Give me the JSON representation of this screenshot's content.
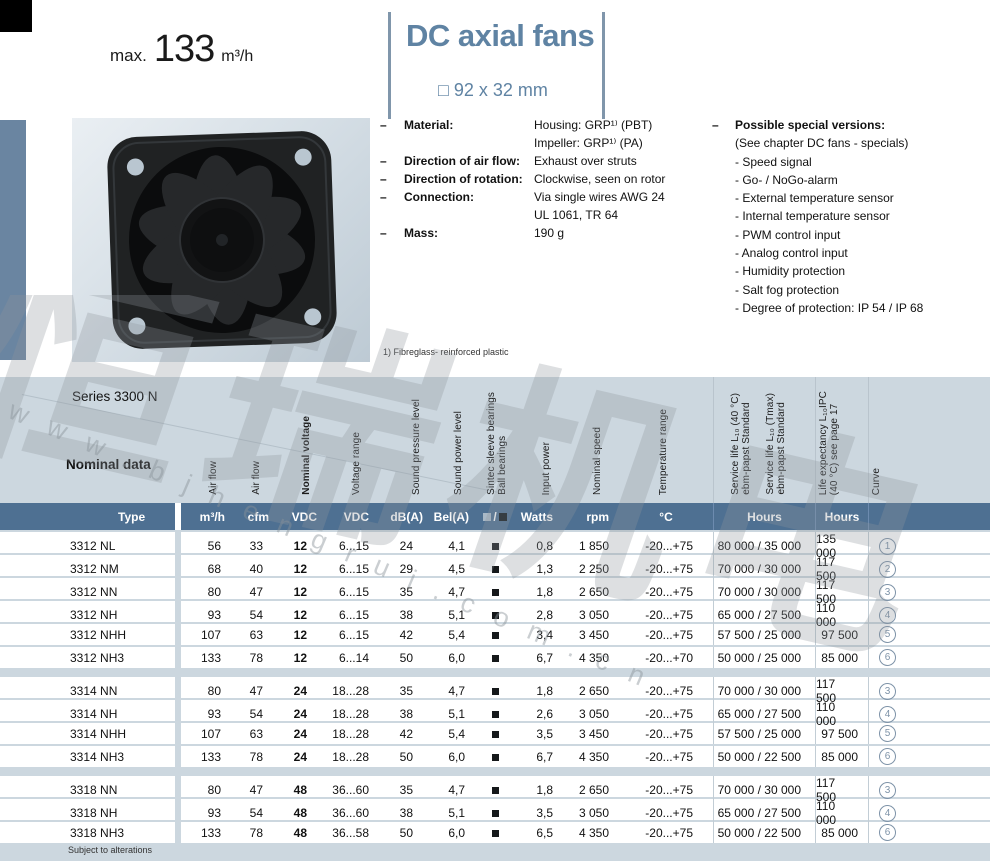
{
  "header": {
    "max_label": "max.",
    "max_value": "133",
    "max_unit": "m³/h",
    "title": "DC axial fans",
    "size": "□ 92 x 32 mm"
  },
  "specs": {
    "dash": "–",
    "items": [
      {
        "label": "Material:",
        "values": [
          "Housing: GRP¹⁾ (PBT)",
          "Impeller: GRP¹⁾ (PA)"
        ]
      },
      {
        "label": "Direction of air flow:",
        "values": [
          "Exhaust over struts"
        ]
      },
      {
        "label": "Direction of rotation:",
        "values": [
          "Clockwise, seen on rotor"
        ]
      },
      {
        "label": "Connection:",
        "values": [
          "Via single wires AWG 24",
          "UL 1061, TR 64"
        ]
      },
      {
        "label": "Mass:",
        "values": [
          "190 g"
        ]
      }
    ],
    "footnote": "1) Fibreglass- reinforced plastic"
  },
  "special_versions": {
    "dash": "–",
    "title": "Possible special versions:",
    "items": [
      "(See chapter DC fans - specials)",
      "- Speed signal",
      "- Go- / NoGo-alarm",
      "- External temperature sensor",
      "- Internal temperature sensor",
      "- PWM control input",
      "- Analog control input",
      "- Humidity protection",
      "- Salt fog protection",
      "- Degree of protection: IP 54 / IP 68"
    ]
  },
  "table": {
    "series": "Series 3300 N",
    "nominal_label": "Nominal data",
    "rotated": [
      {
        "text": "Air flow"
      },
      {
        "text": "Air flow"
      },
      {
        "text": "Nominal voltage",
        "bold": true
      },
      {
        "text": "Voltage range"
      },
      {
        "text": "Sound pressure level"
      },
      {
        "text": "Sound power level"
      },
      {
        "text": "Sintec sleeve bearings\nBall bearings"
      },
      {
        "text": "Input power"
      },
      {
        "text": "Nominal speed"
      },
      {
        "text": "Temperature range"
      },
      {
        "text": "Service life L₁₀  (40 °C)\nebm-papst Standard"
      },
      {
        "text": "Service life L₁₀ (Tmax)\nebm-papst Standard"
      },
      {
        "text": "Life expectancy L₁₀IPC\n(40 °C)  see page 17"
      },
      {
        "text": "Curve"
      }
    ],
    "units": [
      "Type",
      "m³/h",
      "cfm",
      "VDC",
      "VDC",
      "dB(A)",
      "Bel(A)",
      "□/■",
      "Watts",
      "rpm",
      "°C",
      "Hours",
      "Hours",
      ""
    ],
    "groups": [
      [
        [
          "3312 NL",
          "56",
          "33",
          "12",
          "6...15",
          "24",
          "4,1",
          "■",
          "0,8",
          "1 850",
          "-20...+75",
          "80 000 / 35 000",
          "135 000",
          "1"
        ],
        [
          "3312 NM",
          "68",
          "40",
          "12",
          "6...15",
          "29",
          "4,5",
          "■",
          "1,3",
          "2 250",
          "-20...+75",
          "70 000 / 30 000",
          "117 500",
          "2"
        ],
        [
          "3312 NN",
          "80",
          "47",
          "12",
          "6...15",
          "35",
          "4,7",
          "■",
          "1,8",
          "2 650",
          "-20...+75",
          "70 000 / 30 000",
          "117 500",
          "3"
        ],
        [
          "3312 NH",
          "93",
          "54",
          "12",
          "6...15",
          "38",
          "5,1",
          "■",
          "2,8",
          "3 050",
          "-20...+75",
          "65 000 / 27 500",
          "110 000",
          "4"
        ],
        [
          "3312 NHH",
          "107",
          "63",
          "12",
          "6...15",
          "42",
          "5,4",
          "■",
          "3,4",
          "3 450",
          "-20...+75",
          "57 500 / 25 000",
          "97 500",
          "5"
        ],
        [
          "3312 NH3",
          "133",
          "78",
          "12",
          "6...14",
          "50",
          "6,0",
          "■",
          "6,7",
          "4 350",
          "-20...+70",
          "50 000 / 25 000",
          "85 000",
          "6"
        ]
      ],
      [
        [
          "3314 NN",
          "80",
          "47",
          "24",
          "18...28",
          "35",
          "4,7",
          "■",
          "1,8",
          "2 650",
          "-20...+75",
          "70 000 / 30 000",
          "117 500",
          "3"
        ],
        [
          "3314 NH",
          "93",
          "54",
          "24",
          "18...28",
          "38",
          "5,1",
          "■",
          "2,6",
          "3 050",
          "-20...+75",
          "65 000 / 27 500",
          "110 000",
          "4"
        ],
        [
          "3314 NHH",
          "107",
          "63",
          "24",
          "18...28",
          "42",
          "5,4",
          "■",
          "3,5",
          "3 450",
          "-20...+75",
          "57 500 / 25 000",
          "97 500",
          "5"
        ],
        [
          "3314 NH3",
          "133",
          "78",
          "24",
          "18...28",
          "50",
          "6,0",
          "■",
          "6,7",
          "4 350",
          "-20...+75",
          "50 000 / 22 500",
          "85 000",
          "6"
        ]
      ],
      [
        [
          "3318 NN",
          "80",
          "47",
          "48",
          "36...60",
          "35",
          "4,7",
          "■",
          "1,8",
          "2 650",
          "-20...+75",
          "70 000 / 30 000",
          "117 500",
          "3"
        ],
        [
          "3318 NH",
          "93",
          "54",
          "48",
          "36...60",
          "38",
          "5,1",
          "■",
          "3,5",
          "3 050",
          "-20...+75",
          "65 000 / 27 500",
          "110 000",
          "4"
        ],
        [
          "3318 NH3",
          "133",
          "78",
          "48",
          "36...58",
          "50",
          "6,0",
          "■",
          "6,5",
          "4 350",
          "-20...+75",
          "50 000 / 22 500",
          "85 000",
          "6"
        ]
      ]
    ],
    "footer": "Subject to alterations"
  },
  "watermark": {
    "url": "www.bjhengrui.com.cn",
    "cjk": "恒瑞机电"
  }
}
